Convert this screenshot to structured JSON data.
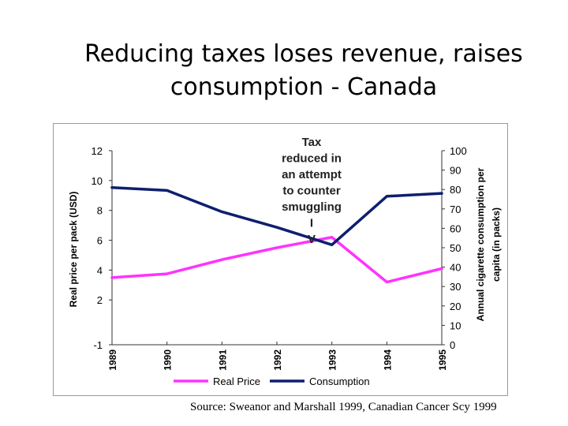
{
  "slide": {
    "title_line1": "Reducing taxes loses revenue, raises",
    "title_line2": "consumption  - Canada",
    "source": "Source: Sweanor and Marshall 1999, Canadian Cancer Scy 1999"
  },
  "chart_data": {
    "type": "line",
    "x": [
      "1989",
      "1990",
      "1991",
      "1992",
      "1993",
      "1994",
      "1995"
    ],
    "series": [
      {
        "name": "Real Price",
        "axis": "left",
        "color": "#ff33ff",
        "values": [
          3.5,
          3.75,
          4.7,
          5.5,
          6.2,
          3.2,
          4.1
        ]
      },
      {
        "name": "Consumption",
        "axis": "right",
        "color": "#0d1f6e",
        "values": [
          81,
          79.5,
          68.5,
          60.5,
          51.5,
          76.5,
          78
        ]
      }
    ],
    "ylabel": "Real price per pack (USD)",
    "ylabel_right": "Annual cigarette consumption per capita (in packs)",
    "ylim": [
      -1,
      12
    ],
    "yticks": [
      "-1",
      "2",
      "4",
      "6",
      "8",
      "10",
      "12"
    ],
    "ylim_right": [
      0,
      100
    ],
    "yticks_right": [
      "0",
      "10",
      "20",
      "30",
      "40",
      "50",
      "60",
      "70",
      "80",
      "90",
      "100"
    ],
    "annotation": [
      "Tax",
      "reduced in",
      "an attempt",
      "to counter",
      "smuggling",
      "I",
      "V"
    ],
    "legend_position": "bottom",
    "grid": false
  }
}
